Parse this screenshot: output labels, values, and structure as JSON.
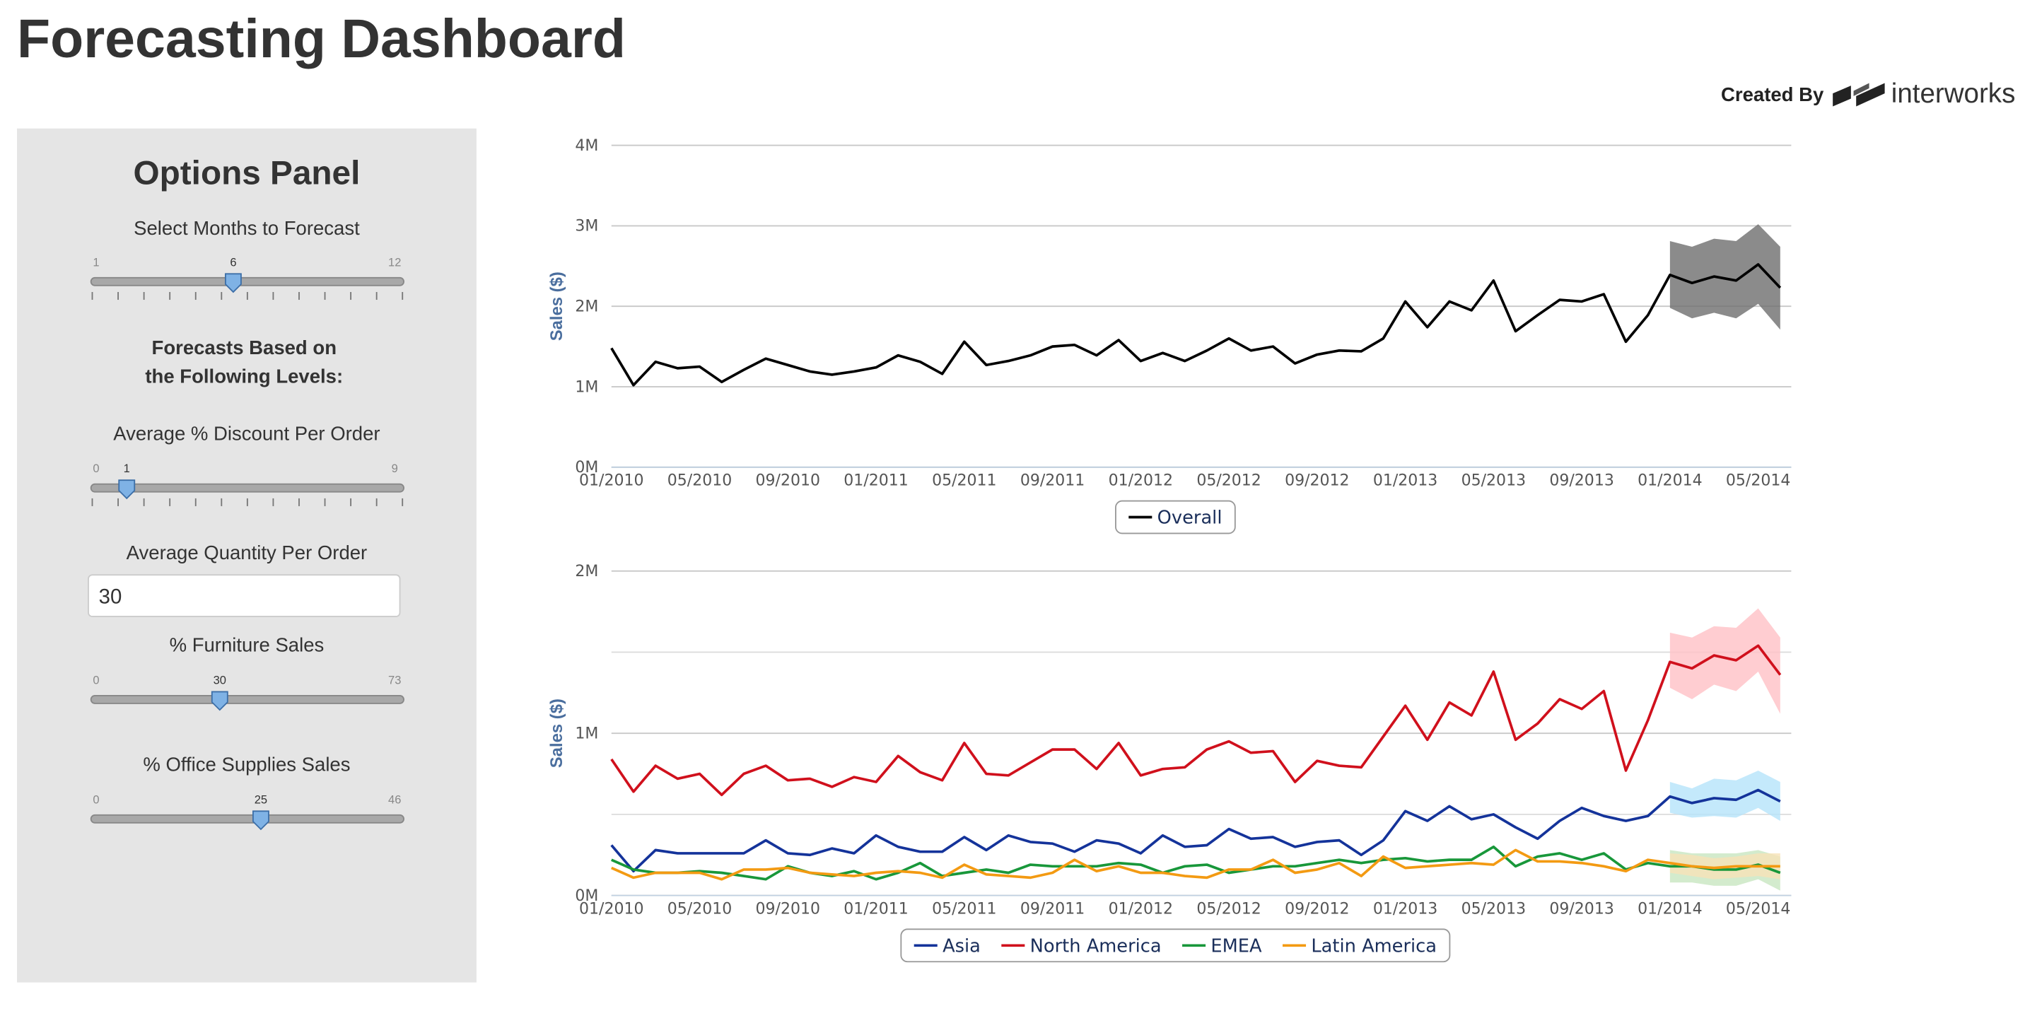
{
  "header": {
    "title": "Forecasting Dashboard",
    "created_by": "Created By",
    "brand": "interworks"
  },
  "panel": {
    "title": "Options Panel",
    "sliders": [
      {
        "label": "Select Months to Forecast",
        "min": 1,
        "max": 12,
        "value": 6
      },
      {
        "label": "Average % Discount Per Order",
        "min": 0,
        "max": 9,
        "value": 1
      },
      {
        "label": "% Furniture Sales",
        "min": 0,
        "max": 73,
        "value": 30
      },
      {
        "label": "% Office Supplies Sales",
        "min": 0,
        "max": 46,
        "value": 25
      }
    ],
    "heading": [
      "Forecasts Based on",
      "the Following Levels:"
    ],
    "input": {
      "label": "Average Quantity Per Order",
      "value": "30"
    }
  },
  "chart_data": [
    {
      "type": "line",
      "ylabel": "Sales ($)",
      "legend": "bottom",
      "grid": true,
      "x": [
        "01/2010",
        null,
        null,
        null,
        "05/2010",
        null,
        null,
        null,
        "09/2010",
        null,
        null,
        null,
        "01/2011",
        null,
        null,
        null,
        "05/2011",
        null,
        null,
        null,
        "09/2011",
        null,
        null,
        null,
        "01/2012",
        null,
        null,
        null,
        "05/2012",
        null,
        null,
        null,
        "09/2012",
        null,
        null,
        null,
        "01/2013",
        null,
        null,
        null,
        "05/2013",
        null,
        null,
        null,
        "09/2013",
        null,
        null,
        null,
        "01/2014",
        null,
        null,
        null,
        "05/2014",
        null
      ],
      "ylim": [
        0,
        4
      ],
      "yticks": [
        {
          "value": 0,
          "label": "0M"
        },
        {
          "value": 1,
          "label": "1M"
        },
        {
          "value": 2,
          "label": "2M"
        },
        {
          "value": 3,
          "label": "3M"
        },
        {
          "value": 4,
          "label": "4M"
        }
      ],
      "minor_yticks": [],
      "series": [
        {
          "name": "Overall",
          "color": "#000000",
          "band_color": "#6e6e6e",
          "values": [
            1.48,
            1.02,
            1.31,
            1.23,
            1.25,
            1.06,
            1.21,
            1.35,
            1.27,
            1.19,
            1.15,
            1.19,
            1.24,
            1.39,
            1.31,
            1.16,
            1.56,
            1.27,
            1.32,
            1.39,
            1.5,
            1.52,
            1.39,
            1.58,
            1.32,
            1.42,
            1.32,
            1.45,
            1.6,
            1.45,
            1.5,
            1.29,
            1.4,
            1.45,
            1.44,
            1.6,
            2.06,
            1.74,
            2.06,
            1.95,
            2.32,
            1.69,
            1.89,
            2.08,
            2.06,
            2.15,
            1.56,
            1.89,
            2.39,
            2.29,
            2.37,
            2.32,
            2.52,
            2.23
          ],
          "upper": [
            null,
            null,
            null,
            null,
            null,
            null,
            null,
            null,
            null,
            null,
            null,
            null,
            null,
            null,
            null,
            null,
            null,
            null,
            null,
            null,
            null,
            null,
            null,
            null,
            null,
            null,
            null,
            null,
            null,
            null,
            null,
            null,
            null,
            null,
            null,
            null,
            null,
            null,
            null,
            null,
            null,
            null,
            null,
            null,
            null,
            null,
            null,
            null,
            2.81,
            2.74,
            2.84,
            2.81,
            3.02,
            2.74
          ],
          "lower": [
            null,
            null,
            null,
            null,
            null,
            null,
            null,
            null,
            null,
            null,
            null,
            null,
            null,
            null,
            null,
            null,
            null,
            null,
            null,
            null,
            null,
            null,
            null,
            null,
            null,
            null,
            null,
            null,
            null,
            null,
            null,
            null,
            null,
            null,
            null,
            null,
            null,
            null,
            null,
            null,
            null,
            null,
            null,
            null,
            null,
            null,
            null,
            null,
            1.98,
            1.85,
            1.92,
            1.85,
            2.03,
            1.71
          ]
        }
      ]
    },
    {
      "type": "line",
      "ylabel": "Sales ($)",
      "legend": "bottom",
      "grid": true,
      "x": [
        "01/2010",
        null,
        null,
        null,
        "05/2010",
        null,
        null,
        null,
        "09/2010",
        null,
        null,
        null,
        "01/2011",
        null,
        null,
        null,
        "05/2011",
        null,
        null,
        null,
        "09/2011",
        null,
        null,
        null,
        "01/2012",
        null,
        null,
        null,
        "05/2012",
        null,
        null,
        null,
        "09/2012",
        null,
        null,
        null,
        "01/2013",
        null,
        null,
        null,
        "05/2013",
        null,
        null,
        null,
        "09/2013",
        null,
        null,
        null,
        "01/2014",
        null,
        null,
        null,
        "05/2014",
        null
      ],
      "ylim": [
        0,
        2
      ],
      "yticks": [
        {
          "value": 0,
          "label": "0M"
        },
        {
          "value": 1,
          "label": "1M"
        },
        {
          "value": 2,
          "label": "2M"
        }
      ],
      "minor_yticks": [
        0.5,
        1.5
      ],
      "series": [
        {
          "name": "Asia",
          "color": "#14339a",
          "band_color": "#b5e3fa",
          "values": [
            0.31,
            0.15,
            0.28,
            0.26,
            0.26,
            0.26,
            0.26,
            0.34,
            0.26,
            0.25,
            0.29,
            0.26,
            0.37,
            0.3,
            0.27,
            0.27,
            0.36,
            0.28,
            0.37,
            0.33,
            0.32,
            0.27,
            0.34,
            0.32,
            0.26,
            0.37,
            0.3,
            0.31,
            0.41,
            0.35,
            0.36,
            0.3,
            0.33,
            0.34,
            0.25,
            0.34,
            0.52,
            0.46,
            0.55,
            0.47,
            0.5,
            0.42,
            0.35,
            0.46,
            0.54,
            0.49,
            0.46,
            0.49,
            0.61,
            0.57,
            0.6,
            0.59,
            0.65,
            0.58
          ],
          "upper": [
            null,
            null,
            null,
            null,
            null,
            null,
            null,
            null,
            null,
            null,
            null,
            null,
            null,
            null,
            null,
            null,
            null,
            null,
            null,
            null,
            null,
            null,
            null,
            null,
            null,
            null,
            null,
            null,
            null,
            null,
            null,
            null,
            null,
            null,
            null,
            null,
            null,
            null,
            null,
            null,
            null,
            null,
            null,
            null,
            null,
            null,
            null,
            null,
            0.7,
            0.66,
            0.72,
            0.71,
            0.77,
            0.7
          ],
          "lower": [
            null,
            null,
            null,
            null,
            null,
            null,
            null,
            null,
            null,
            null,
            null,
            null,
            null,
            null,
            null,
            null,
            null,
            null,
            null,
            null,
            null,
            null,
            null,
            null,
            null,
            null,
            null,
            null,
            null,
            null,
            null,
            null,
            null,
            null,
            null,
            null,
            null,
            null,
            null,
            null,
            null,
            null,
            null,
            null,
            null,
            null,
            null,
            null,
            0.51,
            0.48,
            0.49,
            0.48,
            0.54,
            0.46
          ]
        },
        {
          "name": "North America",
          "color": "#d0101c",
          "band_color": "#ffc0c6",
          "values": [
            0.84,
            0.64,
            0.8,
            0.72,
            0.75,
            0.62,
            0.75,
            0.8,
            0.71,
            0.72,
            0.67,
            0.73,
            0.7,
            0.86,
            0.76,
            0.71,
            0.94,
            0.75,
            0.74,
            0.82,
            0.9,
            0.9,
            0.78,
            0.94,
            0.74,
            0.78,
            0.79,
            0.9,
            0.95,
            0.88,
            0.89,
            0.7,
            0.83,
            0.8,
            0.79,
            0.98,
            1.17,
            0.96,
            1.19,
            1.11,
            1.38,
            0.96,
            1.06,
            1.21,
            1.15,
            1.26,
            0.77,
            1.08,
            1.44,
            1.4,
            1.48,
            1.45,
            1.54,
            1.36
          ],
          "upper": [
            null,
            null,
            null,
            null,
            null,
            null,
            null,
            null,
            null,
            null,
            null,
            null,
            null,
            null,
            null,
            null,
            null,
            null,
            null,
            null,
            null,
            null,
            null,
            null,
            null,
            null,
            null,
            null,
            null,
            null,
            null,
            null,
            null,
            null,
            null,
            null,
            null,
            null,
            null,
            null,
            null,
            null,
            null,
            null,
            null,
            null,
            null,
            null,
            1.62,
            1.59,
            1.66,
            1.65,
            1.77,
            1.59
          ],
          "lower": [
            null,
            null,
            null,
            null,
            null,
            null,
            null,
            null,
            null,
            null,
            null,
            null,
            null,
            null,
            null,
            null,
            null,
            null,
            null,
            null,
            null,
            null,
            null,
            null,
            null,
            null,
            null,
            null,
            null,
            null,
            null,
            null,
            null,
            null,
            null,
            null,
            null,
            null,
            null,
            null,
            null,
            null,
            null,
            null,
            null,
            null,
            null,
            null,
            1.28,
            1.21,
            1.3,
            1.26,
            1.38,
            1.12
          ]
        },
        {
          "name": "EMEA",
          "color": "#18973a",
          "band_color": "#c8e6c0",
          "values": [
            0.22,
            0.16,
            0.14,
            0.14,
            0.15,
            0.14,
            0.12,
            0.1,
            0.18,
            0.14,
            0.12,
            0.15,
            0.1,
            0.14,
            0.2,
            0.12,
            0.14,
            0.16,
            0.14,
            0.19,
            0.18,
            0.18,
            0.18,
            0.2,
            0.19,
            0.14,
            0.18,
            0.19,
            0.14,
            0.16,
            0.18,
            0.18,
            0.2,
            0.22,
            0.2,
            0.22,
            0.23,
            0.21,
            0.22,
            0.22,
            0.3,
            0.18,
            0.24,
            0.26,
            0.22,
            0.26,
            0.16,
            0.2,
            0.18,
            0.18,
            0.16,
            0.16,
            0.19,
            0.14
          ],
          "upper": [
            null,
            null,
            null,
            null,
            null,
            null,
            null,
            null,
            null,
            null,
            null,
            null,
            null,
            null,
            null,
            null,
            null,
            null,
            null,
            null,
            null,
            null,
            null,
            null,
            null,
            null,
            null,
            null,
            null,
            null,
            null,
            null,
            null,
            null,
            null,
            null,
            null,
            null,
            null,
            null,
            null,
            null,
            null,
            null,
            null,
            null,
            null,
            null,
            0.28,
            0.26,
            0.26,
            0.26,
            0.28,
            0.24
          ],
          "lower": [
            null,
            null,
            null,
            null,
            null,
            null,
            null,
            null,
            null,
            null,
            null,
            null,
            null,
            null,
            null,
            null,
            null,
            null,
            null,
            null,
            null,
            null,
            null,
            null,
            null,
            null,
            null,
            null,
            null,
            null,
            null,
            null,
            null,
            null,
            null,
            null,
            null,
            null,
            null,
            null,
            null,
            null,
            null,
            null,
            null,
            null,
            null,
            null,
            0.08,
            0.08,
            0.06,
            0.06,
            0.1,
            0.03
          ]
        },
        {
          "name": "Latin America",
          "color": "#f39a12",
          "band_color": "#f7e2b8",
          "values": [
            0.17,
            0.11,
            0.14,
            0.14,
            0.14,
            0.1,
            0.16,
            0.16,
            0.17,
            0.14,
            0.13,
            0.12,
            0.14,
            0.15,
            0.14,
            0.11,
            0.19,
            0.13,
            0.12,
            0.11,
            0.14,
            0.22,
            0.15,
            0.18,
            0.14,
            0.14,
            0.12,
            0.11,
            0.16,
            0.16,
            0.22,
            0.14,
            0.16,
            0.2,
            0.12,
            0.24,
            0.17,
            0.18,
            0.19,
            0.2,
            0.19,
            0.28,
            0.21,
            0.21,
            0.2,
            0.18,
            0.15,
            0.22,
            0.2,
            0.18,
            0.17,
            0.18,
            0.18,
            0.18
          ],
          "upper": [
            null,
            null,
            null,
            null,
            null,
            null,
            null,
            null,
            null,
            null,
            null,
            null,
            null,
            null,
            null,
            null,
            null,
            null,
            null,
            null,
            null,
            null,
            null,
            null,
            null,
            null,
            null,
            null,
            null,
            null,
            null,
            null,
            null,
            null,
            null,
            null,
            null,
            null,
            null,
            null,
            null,
            null,
            null,
            null,
            null,
            null,
            null,
            null,
            0.26,
            0.25,
            0.23,
            0.24,
            0.26,
            0.26
          ],
          "lower": [
            null,
            null,
            null,
            null,
            null,
            null,
            null,
            null,
            null,
            null,
            null,
            null,
            null,
            null,
            null,
            null,
            null,
            null,
            null,
            null,
            null,
            null,
            null,
            null,
            null,
            null,
            null,
            null,
            null,
            null,
            null,
            null,
            null,
            null,
            null,
            null,
            null,
            null,
            null,
            null,
            null,
            null,
            null,
            null,
            null,
            null,
            null,
            null,
            0.14,
            0.12,
            0.1,
            0.11,
            0.12,
            0.1
          ]
        }
      ]
    }
  ]
}
